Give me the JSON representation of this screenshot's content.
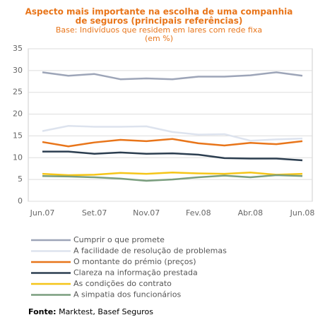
{
  "chart_data": {
    "type": "line",
    "title": [
      "Aspecto mais importante na escolha de uma companhia",
      "de seguros (principais referências)"
    ],
    "subtitle": [
      "Base: Indivíduos que residem em lares com rede fixa",
      "(em %)"
    ],
    "categories": [
      "Jun.07",
      null,
      "Set.07",
      null,
      "Nov.07",
      null,
      "Fev.08",
      null,
      "Abr.08",
      null,
      "Jun.08"
    ],
    "series": [
      {
        "name": "Cumprir o que promete",
        "color": "#9da5b8",
        "values": [
          29.6,
          28.8,
          29.2,
          28.0,
          28.2,
          28.0,
          28.6,
          28.6,
          28.9,
          29.6,
          28.8
        ]
      },
      {
        "name": "A facilidade de resolução de problemas",
        "color": "#dde3ee",
        "values": [
          16.1,
          17.3,
          17.1,
          17.1,
          17.2,
          15.9,
          15.3,
          15.4,
          13.9,
          14.2,
          14.4
        ]
      },
      {
        "name": "O montante do prémio (preços)",
        "color": "#e8751a",
        "values": [
          13.6,
          12.6,
          13.5,
          14.1,
          13.8,
          14.3,
          13.3,
          12.8,
          13.4,
          13.1,
          13.8
        ]
      },
      {
        "name": "Clareza na informação prestada",
        "color": "#2c3e50",
        "values": [
          11.4,
          11.4,
          10.9,
          11.2,
          10.9,
          11.0,
          10.7,
          9.9,
          9.8,
          9.8,
          9.4
        ]
      },
      {
        "name": "As condições do contrato",
        "color": "#f5c518",
        "values": [
          6.3,
          6.0,
          6.1,
          6.5,
          6.3,
          6.6,
          6.4,
          6.3,
          6.6,
          6.1,
          6.3
        ]
      },
      {
        "name": "A simpatia dos funcionários",
        "color": "#7a9e7e",
        "values": [
          5.8,
          5.7,
          5.5,
          5.2,
          4.7,
          5.0,
          5.5,
          5.9,
          5.5,
          6.0,
          5.8
        ]
      }
    ],
    "ylim": [
      0,
      35
    ],
    "yticks": [
      0,
      5,
      10,
      15,
      20,
      25,
      30,
      35
    ],
    "grid": true,
    "source_label": "Fonte:",
    "source": "Marktest, Basef Seguros"
  }
}
